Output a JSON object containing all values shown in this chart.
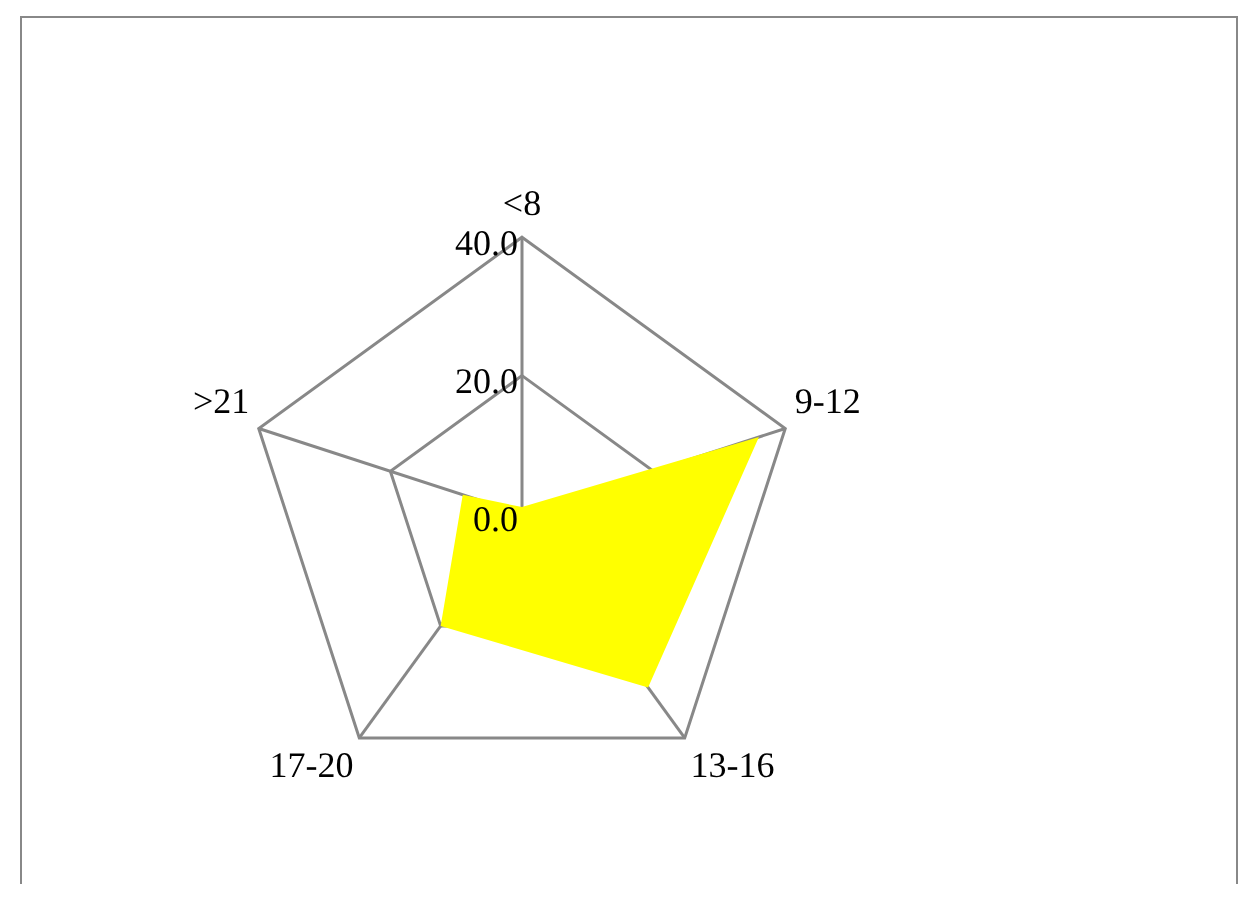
{
  "chart_data": {
    "type": "radar",
    "categories": [
      "<8",
      "9-12",
      "13-16",
      "17-20",
      ">21"
    ],
    "series": [
      {
        "color": "#ffff00",
        "values": [
          1,
          36,
          31,
          20,
          9
        ]
      }
    ],
    "ylim": [
      0,
      40
    ],
    "yticks": [
      {
        "value": 0,
        "label": "0.0"
      },
      {
        "value": 20,
        "label": "20.0"
      },
      {
        "value": 40,
        "label": "40.0"
      }
    ],
    "grid": true,
    "legend": false,
    "marker": "none"
  }
}
